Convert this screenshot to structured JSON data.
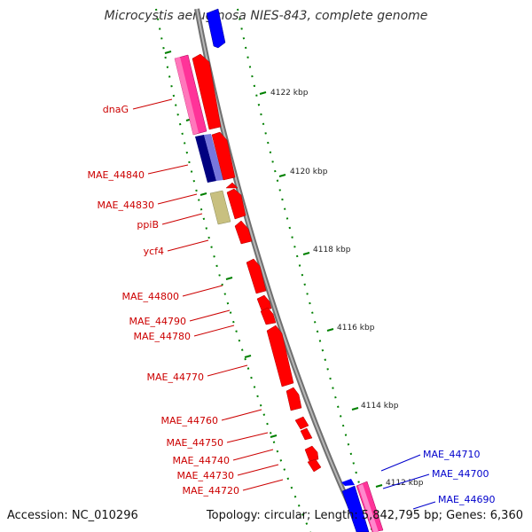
{
  "title": "Microcystis aeruginosa NIES-843, complete genome",
  "accession": "Accession: NC_010296",
  "summary": "Topology: circular; Length: 5,842,795 bp; Genes: 6,360",
  "ticks": [
    "4122 kbp",
    "4120 kbp",
    "4118 kbp",
    "4116 kbp",
    "4114 kbp",
    "4112 kbp"
  ],
  "labels_left": [
    "dnaG",
    "MAE_44840",
    "MAE_44830",
    "ppiB",
    "ycf4",
    "MAE_44800",
    "MAE_44790",
    "MAE_44780",
    "MAE_44770",
    "MAE_44760",
    "MAE_44750",
    "MAE_44740",
    "MAE_44730",
    "MAE_44720"
  ],
  "labels_right": [
    "MAE_44710",
    "MAE_44700",
    "MAE_44690"
  ],
  "colors": {
    "red": "#ff0000",
    "blue": "#0000ff",
    "pink": "#ff3399",
    "navy": "#000080",
    "periwinkle": "#7777dd",
    "khaki": "#c8c080",
    "dot": "#008000",
    "backbone": "#808080"
  }
}
